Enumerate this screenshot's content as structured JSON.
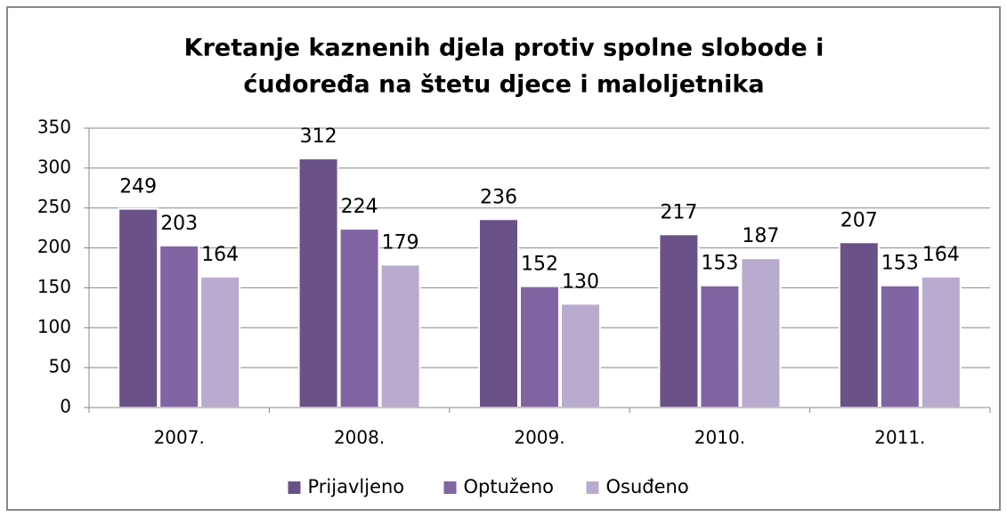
{
  "chart_data": {
    "type": "bar",
    "title": [
      "Kretanje kaznenih djela protiv spolne slobode i",
      "ćudoređa na štetu djece i maloljetnika"
    ],
    "categories": [
      "2007.",
      "2008.",
      "2009.",
      "2010.",
      "2011."
    ],
    "series": [
      {
        "name": "Prijavljeno",
        "color": "#6a5288",
        "values": [
          249,
          312,
          236,
          217,
          207
        ]
      },
      {
        "name": "Optuženo",
        "color": "#8165a3",
        "values": [
          203,
          224,
          152,
          153,
          153
        ]
      },
      {
        "name": "Osuđeno",
        "color": "#b9abcd",
        "values": [
          164,
          179,
          130,
          187,
          164
        ]
      }
    ],
    "ylim": [
      0,
      350
    ],
    "yticks": [
      0,
      50,
      100,
      150,
      200,
      250,
      300,
      350
    ],
    "grid": true,
    "legend": "bottom"
  }
}
